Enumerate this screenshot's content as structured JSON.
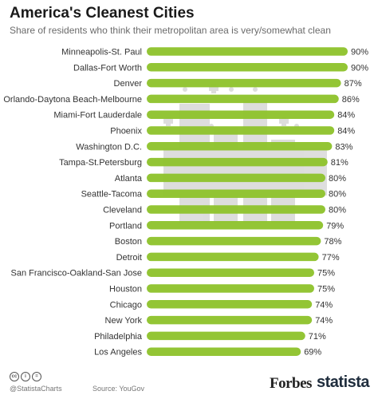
{
  "header": {
    "title": "America's Cleanest Cities",
    "subtitle": "Share of residents who think their metropolitan area is very/somewhat clean"
  },
  "colors": {
    "bar": "#8dc22a",
    "bar_label": "#333333",
    "illustration": "#d6d6d6"
  },
  "chart_data": {
    "type": "bar",
    "orientation": "horizontal",
    "title": "America's Cleanest Cities",
    "subtitle": "Share of residents who think their metropolitan area is very/somewhat clean",
    "categories": [
      "Minneapolis-St. Paul",
      "Dallas-Fort Worth",
      "Denver",
      "Orlando-Daytona Beach-Melbourne",
      "Miami-Fort Lauderdale",
      "Phoenix",
      "Washington D.C.",
      "Tampa-St.Petersburg",
      "Atlanta",
      "Seattle-Tacoma",
      "Cleveland",
      "Portland",
      "Boston",
      "Detroit",
      "San Francisco-Oakland-San Jose",
      "Houston",
      "Chicago",
      "New York",
      "Philadelphia",
      "Los Angeles"
    ],
    "values": [
      90,
      90,
      87,
      86,
      84,
      84,
      83,
      81,
      80,
      80,
      80,
      79,
      78,
      77,
      75,
      75,
      74,
      74,
      71,
      69
    ],
    "value_labels": [
      "90%",
      "90%",
      "87%",
      "86%",
      "84%",
      "84%",
      "83%",
      "81%",
      "80%",
      "80%",
      "80%",
      "79%",
      "78%",
      "77%",
      "75%",
      "75%",
      "74%",
      "74%",
      "71%",
      "69%"
    ],
    "xlim": [
      0,
      90
    ],
    "grid": false,
    "legend": "none"
  },
  "footer": {
    "license_icons": [
      "cc",
      "i",
      "="
    ],
    "handle": "@StatistaCharts",
    "source": "Source: YouGov",
    "forbes_logo": "Forbes",
    "statista_logo": "statista"
  }
}
